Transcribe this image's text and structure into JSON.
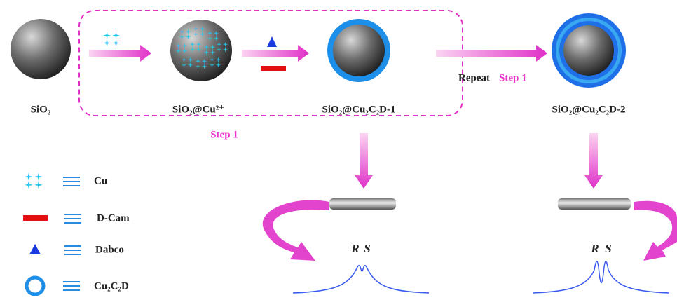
{
  "scheme": {
    "particles": [
      {
        "label": "SiO₂"
      },
      {
        "label": "SiO₂@Cu²⁺"
      },
      {
        "label": "SiO₂@Cu₂C₂D-1"
      },
      {
        "label": "SiO₂@Cu₂C₂D-2"
      }
    ],
    "step_label": "Step 1",
    "repeat": {
      "prefix": "Repeat",
      "step": "Step 1"
    },
    "legend": [
      {
        "label": "Cu"
      },
      {
        "label": "D-Cam"
      },
      {
        "label": "Dabco"
      },
      {
        "label": "Cu₂C₂D"
      }
    ],
    "chromatograms": [
      {
        "peaks": [
          "R",
          "S"
        ]
      },
      {
        "peaks": [
          "R",
          "S"
        ]
      }
    ]
  }
}
